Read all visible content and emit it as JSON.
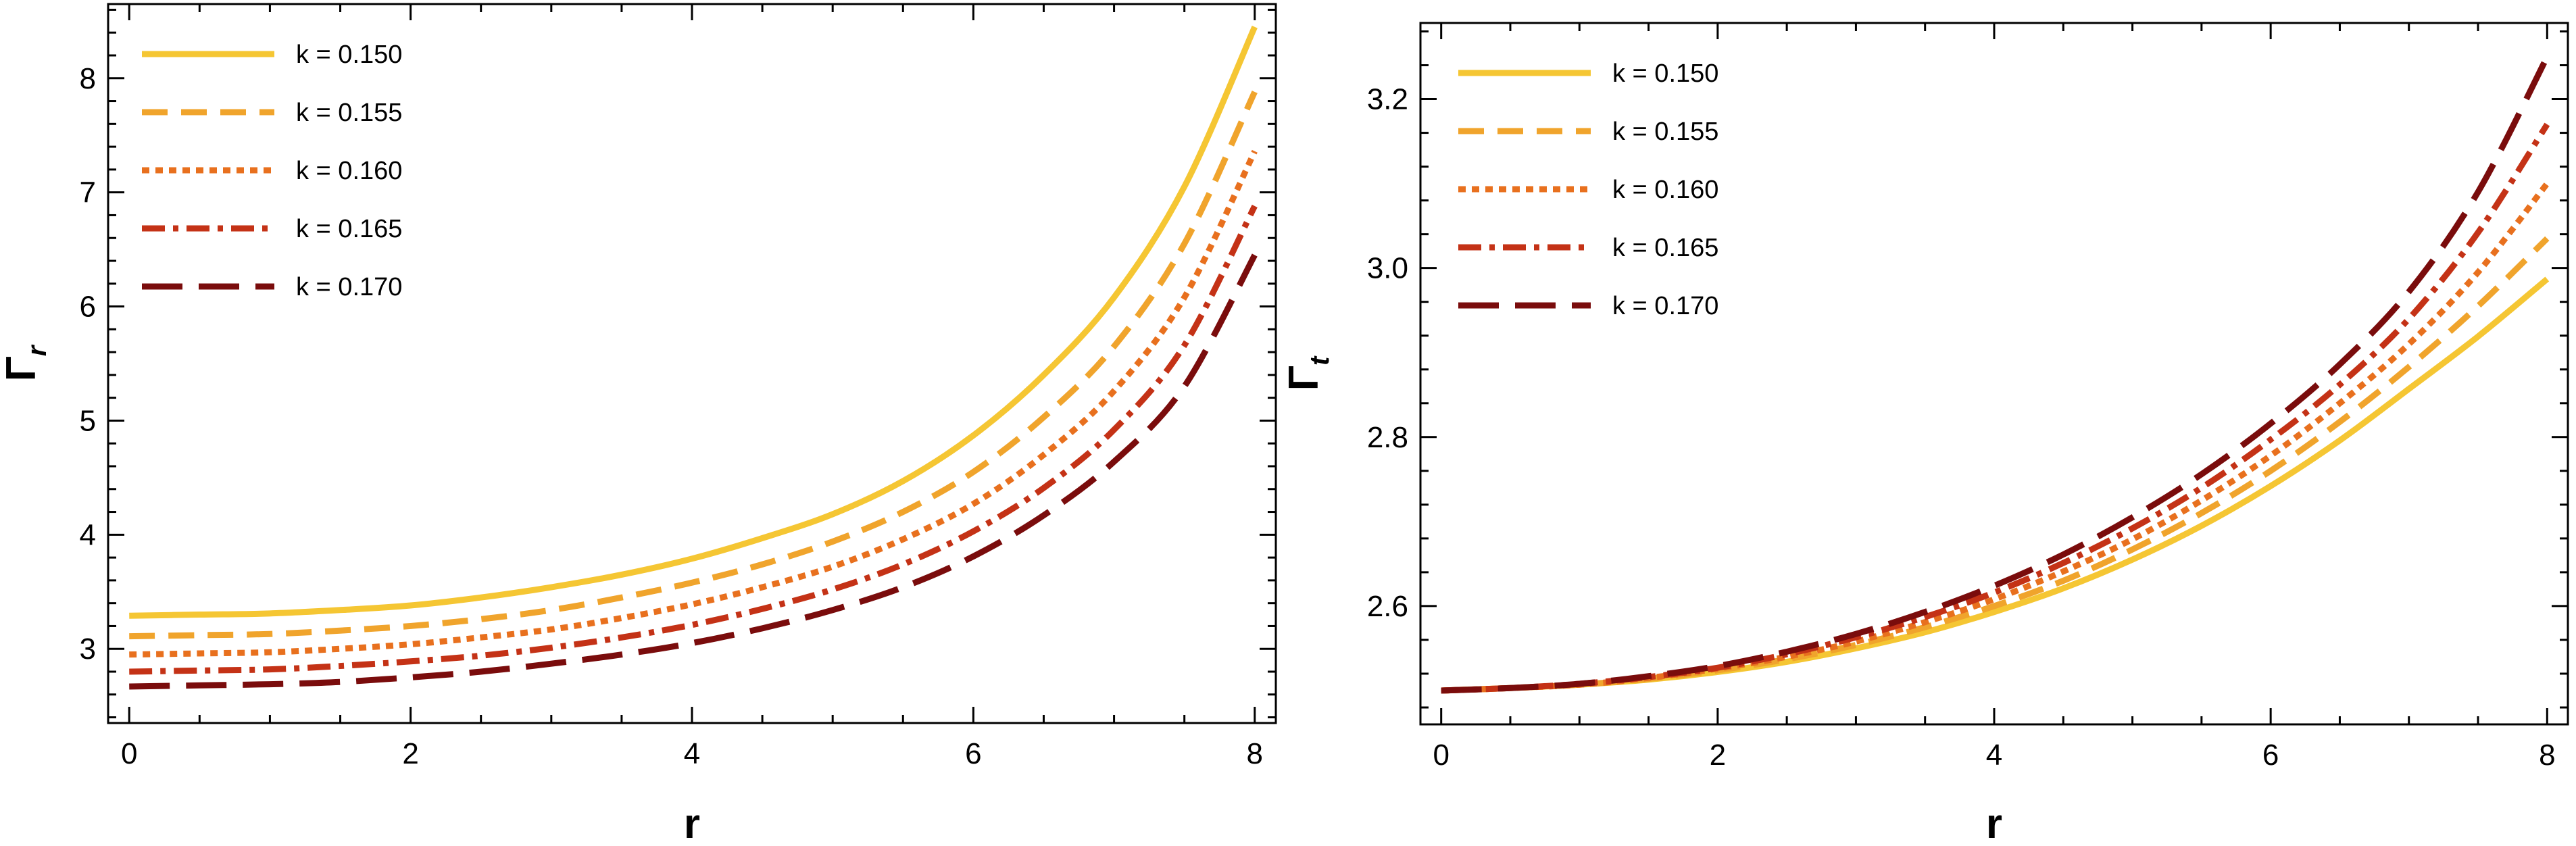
{
  "chart_data": [
    {
      "type": "line",
      "xlabel": "r",
      "ylabel": {
        "main": "Γ",
        "sub": "r"
      },
      "xlim": [
        -0.15,
        8.15
      ],
      "ylim": [
        2.35,
        8.65
      ],
      "xticks": [
        0,
        2,
        4,
        6,
        8
      ],
      "xtick_labels": [
        "0",
        "2",
        "4",
        "6",
        "8"
      ],
      "yticks": [
        3,
        4,
        5,
        6,
        7,
        8
      ],
      "ytick_labels": [
        "3",
        "4",
        "5",
        "6",
        "7",
        "8"
      ],
      "grid": false,
      "legend_position": "top-left",
      "x": [
        0,
        0.5,
        1,
        1.5,
        2,
        2.5,
        3,
        3.5,
        4,
        4.5,
        5,
        5.5,
        6,
        6.5,
        7,
        7.5,
        8
      ],
      "series": [
        {
          "name": "k = 0.150",
          "color": "#F5C633",
          "dash": "solid",
          "values": [
            3.29,
            3.3,
            3.31,
            3.34,
            3.38,
            3.45,
            3.54,
            3.65,
            3.79,
            3.97,
            4.18,
            4.47,
            4.87,
            5.4,
            6.08,
            7.05,
            8.45
          ]
        },
        {
          "name": "k = 0.155",
          "color": "#F0A42C",
          "dash": "dashed",
          "values": [
            3.11,
            3.12,
            3.13,
            3.16,
            3.2,
            3.26,
            3.34,
            3.45,
            3.58,
            3.74,
            3.94,
            4.2,
            4.55,
            5.03,
            5.65,
            6.55,
            7.88
          ]
        },
        {
          "name": "k = 0.160",
          "color": "#E8701E",
          "dash": "dotted",
          "values": [
            2.95,
            2.96,
            2.97,
            3.0,
            3.04,
            3.1,
            3.17,
            3.27,
            3.39,
            3.54,
            3.72,
            3.96,
            4.27,
            4.7,
            5.26,
            6.08,
            7.36
          ]
        },
        {
          "name": "k = 0.165",
          "color": "#C43216",
          "dash": "dashdot",
          "values": [
            2.8,
            2.81,
            2.82,
            2.85,
            2.89,
            2.94,
            3.01,
            3.1,
            3.21,
            3.35,
            3.52,
            3.74,
            4.03,
            4.41,
            4.92,
            5.66,
            6.88
          ]
        },
        {
          "name": "k = 0.170",
          "color": "#7A0C0C",
          "dash": "longdash",
          "values": [
            2.67,
            2.68,
            2.69,
            2.71,
            2.75,
            2.8,
            2.87,
            2.95,
            3.05,
            3.18,
            3.34,
            3.54,
            3.81,
            4.17,
            4.64,
            5.3,
            6.45
          ]
        }
      ]
    },
    {
      "type": "line",
      "xlabel": "r",
      "ylabel": {
        "main": "Γ",
        "sub": "t"
      },
      "xlim": [
        -0.15,
        8.15
      ],
      "ylim": [
        2.46,
        3.29
      ],
      "xticks": [
        0,
        2,
        4,
        6,
        8
      ],
      "xtick_labels": [
        "0",
        "2",
        "4",
        "6",
        "8"
      ],
      "yticks": [
        2.6,
        2.8,
        3.0,
        3.2
      ],
      "ytick_labels": [
        "2.6",
        "2.8",
        "3.0",
        "3.2"
      ],
      "grid": false,
      "legend_position": "top-left",
      "x": [
        0,
        0.5,
        1,
        1.5,
        2,
        2.5,
        3,
        3.5,
        4,
        4.5,
        5,
        5.5,
        6,
        6.5,
        7,
        7.5,
        8
      ],
      "series": [
        {
          "name": "k = 0.150",
          "color": "#F5C633",
          "dash": "solid",
          "values": [
            2.5,
            2.503,
            2.507,
            2.513,
            2.522,
            2.534,
            2.55,
            2.569,
            2.593,
            2.621,
            2.655,
            2.695,
            2.742,
            2.796,
            2.857,
            2.919,
            2.987
          ]
        },
        {
          "name": "k = 0.155",
          "color": "#F0A42C",
          "dash": "dashed",
          "values": [
            2.5,
            2.503,
            2.507,
            2.514,
            2.524,
            2.537,
            2.554,
            2.575,
            2.6,
            2.63,
            2.667,
            2.71,
            2.76,
            2.818,
            2.883,
            2.955,
            3.035
          ]
        },
        {
          "name": "k = 0.160",
          "color": "#E8701E",
          "dash": "dotted",
          "values": [
            2.5,
            2.503,
            2.507,
            2.515,
            2.526,
            2.54,
            2.558,
            2.581,
            2.608,
            2.641,
            2.679,
            2.725,
            2.778,
            2.84,
            2.91,
            2.995,
            3.1
          ]
        },
        {
          "name": "k = 0.165",
          "color": "#C43216",
          "dash": "dashdot",
          "values": [
            2.5,
            2.503,
            2.508,
            2.516,
            2.527,
            2.543,
            2.563,
            2.587,
            2.616,
            2.651,
            2.692,
            2.74,
            2.797,
            2.862,
            2.94,
            3.042,
            3.17
          ]
        },
        {
          "name": "k = 0.170",
          "color": "#7A0C0C",
          "dash": "longdash",
          "values": [
            2.5,
            2.503,
            2.508,
            2.517,
            2.529,
            2.546,
            2.567,
            2.593,
            2.624,
            2.661,
            2.705,
            2.756,
            2.816,
            2.886,
            2.972,
            3.09,
            3.25
          ]
        }
      ]
    }
  ]
}
